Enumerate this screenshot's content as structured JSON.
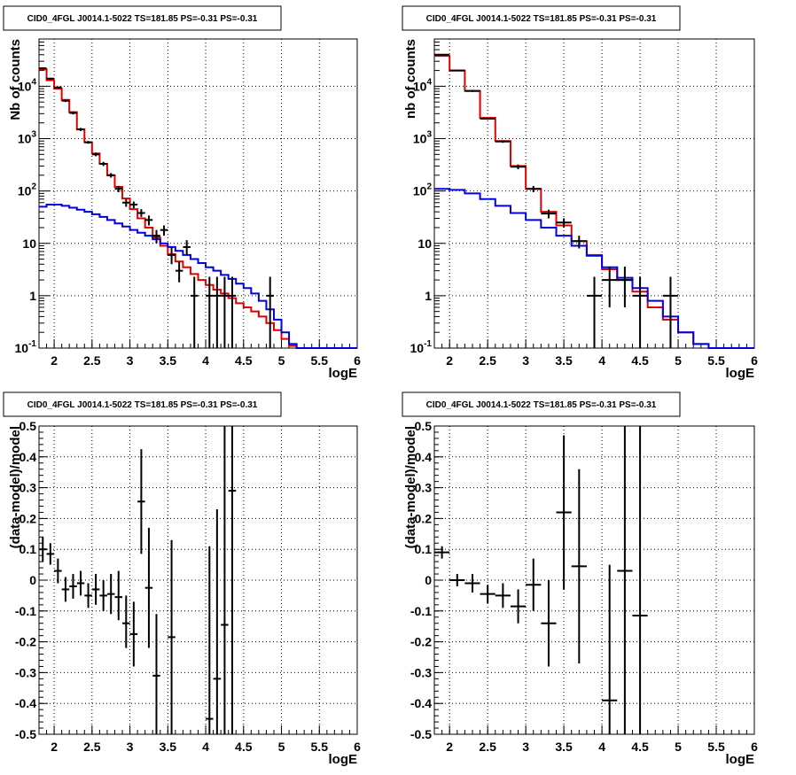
{
  "chart_data": [
    {
      "type": "line",
      "title": "CID0_4FGL J0014.1-5022 TS=181.85 PS=-0.31 PS=-0.31",
      "xlabel": "logE",
      "ylabel": "Nb of counts",
      "xlim": [
        1.8,
        6.0
      ],
      "ylim": [
        0.1,
        80000
      ],
      "yscale": "log",
      "grid": true,
      "x_ticks": [
        "2",
        "2.5",
        "3",
        "3.5",
        "4",
        "4.5",
        "5",
        "5.5",
        "6"
      ],
      "y_ticks": [
        "10^-1",
        "1",
        "10",
        "10^2",
        "10^3",
        "10^4"
      ],
      "bin_edges": [
        1.8,
        1.9,
        2.0,
        2.1,
        2.2,
        2.3,
        2.4,
        2.5,
        2.6,
        2.7,
        2.8,
        2.9,
        3.0,
        3.1,
        3.2,
        3.3,
        3.4,
        3.5,
        3.6,
        3.7,
        3.8,
        3.9,
        4.0,
        4.1,
        4.2,
        4.3,
        4.4,
        4.5,
        4.6,
        4.7,
        4.8,
        4.9,
        5.0,
        5.1,
        5.2,
        5.3,
        5.4,
        5.5,
        5.6,
        5.7,
        5.8,
        5.9,
        6.0
      ],
      "series": [
        {
          "color": "#e00000",
          "style": "step",
          "values": [
            21000,
            13000,
            9000,
            5500,
            3200,
            1500,
            850,
            520,
            330,
            200,
            120,
            72,
            45,
            30,
            20,
            13,
            9,
            6.2,
            4.5,
            3.5,
            2.6,
            2.0,
            1.6,
            1.3,
            1.1,
            0.9,
            0.72,
            0.6,
            0.5,
            0.4,
            0.3,
            0.22,
            0.15,
            0.11,
            0.1,
            0.1,
            0.1,
            0.1,
            0.1,
            0.1,
            0.1,
            0.1
          ]
        },
        {
          "color": "#0000e0",
          "style": "step",
          "values": [
            50,
            55,
            55,
            52,
            48,
            44,
            40,
            36,
            32,
            28,
            24,
            21,
            18,
            16,
            14,
            12,
            10,
            8.5,
            7.2,
            6,
            5,
            4.2,
            3.5,
            3,
            2.5,
            2.1,
            1.7,
            1.4,
            1.1,
            0.8,
            0.55,
            0.35,
            0.2,
            0.12,
            0.1,
            0.1,
            0.1,
            0.1,
            0.1,
            0.1,
            0.1,
            0.1
          ]
        },
        {
          "color": "#000000",
          "style": "errorbar",
          "points": [
            {
              "x": 1.85,
              "y": 22000,
              "lo": 21000,
              "hi": 23000
            },
            {
              "x": 1.95,
              "y": 14000,
              "lo": 13500,
              "hi": 14500
            },
            {
              "x": 2.05,
              "y": 9500,
              "lo": 9100,
              "hi": 9900
            },
            {
              "x": 2.15,
              "y": 5300,
              "lo": 5000,
              "hi": 5600
            },
            {
              "x": 2.25,
              "y": 3100,
              "lo": 2900,
              "hi": 3300
            },
            {
              "x": 2.35,
              "y": 1500,
              "lo": 1400,
              "hi": 1600
            },
            {
              "x": 2.45,
              "y": 850,
              "lo": 800,
              "hi": 900
            },
            {
              "x": 2.55,
              "y": 500,
              "lo": 460,
              "hi": 540
            },
            {
              "x": 2.65,
              "y": 330,
              "lo": 300,
              "hi": 360
            },
            {
              "x": 2.75,
              "y": 200,
              "lo": 180,
              "hi": 220
            },
            {
              "x": 2.85,
              "y": 110,
              "lo": 95,
              "hi": 125
            },
            {
              "x": 2.95,
              "y": 60,
              "lo": 50,
              "hi": 70
            },
            {
              "x": 3.05,
              "y": 55,
              "lo": 47,
              "hi": 63
            },
            {
              "x": 3.15,
              "y": 38,
              "lo": 32,
              "hi": 45
            },
            {
              "x": 3.25,
              "y": 28,
              "lo": 22,
              "hi": 34
            },
            {
              "x": 3.35,
              "y": 14,
              "lo": 10,
              "hi": 18
            },
            {
              "x": 3.45,
              "y": 18,
              "lo": 14,
              "hi": 22
            },
            {
              "x": 3.55,
              "y": 6,
              "lo": 4,
              "hi": 8.5
            },
            {
              "x": 3.65,
              "y": 3,
              "lo": 1.8,
              "hi": 4.5
            },
            {
              "x": 3.75,
              "y": 8.5,
              "lo": 6,
              "hi": 11.5
            },
            {
              "x": 3.85,
              "y": 1,
              "lo": 0.1,
              "hi": 2.3
            },
            {
              "x": 4.05,
              "y": 1,
              "lo": 0.1,
              "hi": 2.3
            },
            {
              "x": 4.15,
              "y": 1,
              "lo": 0.1,
              "hi": 2.3
            },
            {
              "x": 4.25,
              "y": 1,
              "lo": 0.1,
              "hi": 2.3
            },
            {
              "x": 4.35,
              "y": 1,
              "lo": 0.1,
              "hi": 2.3
            },
            {
              "x": 4.85,
              "y": 1,
              "lo": 0.1,
              "hi": 2.3
            }
          ]
        }
      ]
    },
    {
      "type": "line",
      "title": "CID0_4FGL J0014.1-5022 TS=181.85 PS=-0.31 PS=-0.31",
      "xlabel": "logE",
      "ylabel": "nb of counts",
      "xlim": [
        1.8,
        6.0
      ],
      "ylim": [
        0.1,
        80000
      ],
      "yscale": "log",
      "grid": true,
      "x_ticks": [
        "2",
        "2.5",
        "3",
        "3.5",
        "4",
        "4.5",
        "5",
        "5.5",
        "6"
      ],
      "y_ticks": [
        "10^-1",
        "1",
        "10",
        "10^2",
        "10^3",
        "10^4"
      ],
      "bin_edges": [
        1.8,
        2.0,
        2.2,
        2.4,
        2.6,
        2.8,
        3.0,
        3.2,
        3.4,
        3.6,
        3.8,
        4.0,
        4.2,
        4.4,
        4.6,
        4.8,
        5.0,
        5.2,
        5.4,
        5.6,
        5.8,
        6.0
      ],
      "series": [
        {
          "color": "#e00000",
          "style": "step",
          "values": [
            38000,
            20000,
            8200,
            2500,
            900,
            300,
            110,
            40,
            22,
            11,
            6,
            3.2,
            2.0,
            1.2,
            0.6,
            0.35,
            0.2,
            0.12,
            0.1,
            0.1,
            0.1
          ]
        },
        {
          "color": "#0000e0",
          "style": "step",
          "values": [
            110,
            105,
            90,
            70,
            52,
            38,
            28,
            20,
            14,
            9,
            5.8,
            3.5,
            2.2,
            1.4,
            0.8,
            0.4,
            0.2,
            0.12,
            0.1,
            0.1,
            0.1
          ]
        },
        {
          "color": "#000000",
          "style": "errorbar",
          "points": [
            {
              "x": 1.9,
              "y": 40000,
              "lo": 39000,
              "hi": 41000
            },
            {
              "x": 2.1,
              "y": 20000,
              "lo": 19500,
              "hi": 20500
            },
            {
              "x": 2.3,
              "y": 8100,
              "lo": 7800,
              "hi": 8400
            },
            {
              "x": 2.5,
              "y": 2400,
              "lo": 2300,
              "hi": 2500
            },
            {
              "x": 2.7,
              "y": 880,
              "lo": 830,
              "hi": 930
            },
            {
              "x": 2.9,
              "y": 290,
              "lo": 260,
              "hi": 320
            },
            {
              "x": 3.1,
              "y": 110,
              "lo": 95,
              "hi": 125
            },
            {
              "x": 3.3,
              "y": 37,
              "lo": 30,
              "hi": 44
            },
            {
              "x": 3.5,
              "y": 25,
              "lo": 20,
              "hi": 30
            },
            {
              "x": 3.7,
              "y": 11,
              "lo": 8,
              "hi": 14
            },
            {
              "x": 3.9,
              "y": 1,
              "lo": 0.1,
              "hi": 2.3
            },
            {
              "x": 4.1,
              "y": 2,
              "lo": 0.6,
              "hi": 3.6
            },
            {
              "x": 4.3,
              "y": 2,
              "lo": 0.6,
              "hi": 3.6
            },
            {
              "x": 4.5,
              "y": 1,
              "lo": 0.1,
              "hi": 2.3
            },
            {
              "x": 4.9,
              "y": 1,
              "lo": 0.1,
              "hi": 2.3
            }
          ]
        }
      ]
    },
    {
      "type": "scatter",
      "title": "CID0_4FGL J0014.1-5022 TS=181.85 PS=-0.31 PS=-0.31",
      "xlabel": "logE",
      "ylabel": "(data-model)/model",
      "xlim": [
        1.8,
        6.0
      ],
      "ylim": [
        -0.5,
        0.5
      ],
      "grid": true,
      "x_ticks": [
        "2",
        "2.5",
        "3",
        "3.5",
        "4",
        "4.5",
        "5",
        "5.5",
        "6"
      ],
      "y_ticks": [
        "-0.5",
        "-0.4",
        "-0.3",
        "-0.2",
        "-0.1",
        "0",
        "0.1",
        "0.2",
        "0.3",
        "0.4",
        "0.5"
      ],
      "series": [
        {
          "color": "#000000",
          "style": "errorbar",
          "xerr": 0.05,
          "points": [
            {
              "x": 1.85,
              "y": 0.1,
              "lo": 0.06,
              "hi": 0.14
            },
            {
              "x": 1.95,
              "y": 0.085,
              "lo": 0.05,
              "hi": 0.12
            },
            {
              "x": 2.05,
              "y": 0.03,
              "lo": -0.01,
              "hi": 0.07
            },
            {
              "x": 2.15,
              "y": -0.03,
              "lo": -0.07,
              "hi": 0.01
            },
            {
              "x": 2.25,
              "y": -0.02,
              "lo": -0.06,
              "hi": 0.02
            },
            {
              "x": 2.35,
              "y": -0.01,
              "lo": -0.05,
              "hi": 0.03
            },
            {
              "x": 2.45,
              "y": -0.05,
              "lo": -0.09,
              "hi": -0.01
            },
            {
              "x": 2.55,
              "y": -0.03,
              "lo": -0.08,
              "hi": 0.02
            },
            {
              "x": 2.65,
              "y": -0.05,
              "lo": -0.1,
              "hi": 0.0
            },
            {
              "x": 2.75,
              "y": -0.045,
              "lo": -0.11,
              "hi": 0.02
            },
            {
              "x": 2.85,
              "y": -0.055,
              "lo": -0.13,
              "hi": 0.03
            },
            {
              "x": 2.95,
              "y": -0.14,
              "lo": -0.22,
              "hi": -0.05
            },
            {
              "x": 3.05,
              "y": -0.175,
              "lo": -0.28,
              "hi": -0.07
            },
            {
              "x": 3.15,
              "y": 0.255,
              "lo": 0.085,
              "hi": 0.425
            },
            {
              "x": 3.25,
              "y": -0.025,
              "lo": -0.22,
              "hi": 0.17
            },
            {
              "x": 3.35,
              "y": -0.31,
              "lo": -0.5,
              "hi": -0.11
            },
            {
              "x": 3.55,
              "y": -0.185,
              "lo": -0.5,
              "hi": 0.13
            },
            {
              "x": 4.05,
              "y": -0.45,
              "lo": -0.5,
              "hi": 0.11
            },
            {
              "x": 4.15,
              "y": -0.32,
              "lo": -0.5,
              "hi": 0.23
            },
            {
              "x": 4.25,
              "y": -0.145,
              "lo": -0.5,
              "hi": 0.5
            },
            {
              "x": 4.35,
              "y": 0.29,
              "lo": -0.5,
              "hi": 0.5
            }
          ]
        }
      ]
    },
    {
      "type": "scatter",
      "title": "CID0_4FGL J0014.1-5022 TS=181.85 PS=-0.31 PS=-0.31",
      "xlabel": "logE",
      "ylabel": "(data-model)/model",
      "xlim": [
        1.8,
        6.0
      ],
      "ylim": [
        -0.5,
        0.5
      ],
      "grid": true,
      "x_ticks": [
        "2",
        "2.5",
        "3",
        "3.5",
        "4",
        "4.5",
        "5",
        "5.5",
        "6"
      ],
      "y_ticks": [
        "-0.5",
        "-0.4",
        "-0.3",
        "-0.2",
        "-0.1",
        "0",
        "0.1",
        "0.2",
        "0.3",
        "0.4",
        "0.5"
      ],
      "series": [
        {
          "color": "#000000",
          "style": "errorbar",
          "xerr": 0.1,
          "points": [
            {
              "x": 1.9,
              "y": 0.09,
              "lo": 0.07,
              "hi": 0.11
            },
            {
              "x": 2.1,
              "y": 0.0,
              "lo": -0.02,
              "hi": 0.02
            },
            {
              "x": 2.3,
              "y": -0.01,
              "lo": -0.04,
              "hi": 0.02
            },
            {
              "x": 2.5,
              "y": -0.045,
              "lo": -0.075,
              "hi": -0.015
            },
            {
              "x": 2.7,
              "y": -0.05,
              "lo": -0.09,
              "hi": -0.01
            },
            {
              "x": 2.9,
              "y": -0.085,
              "lo": -0.14,
              "hi": -0.03
            },
            {
              "x": 3.1,
              "y": -0.015,
              "lo": -0.1,
              "hi": 0.07
            },
            {
              "x": 3.3,
              "y": -0.14,
              "lo": -0.28,
              "hi": 0.0
            },
            {
              "x": 3.5,
              "y": 0.22,
              "lo": -0.03,
              "hi": 0.47
            },
            {
              "x": 3.7,
              "y": 0.045,
              "lo": -0.27,
              "hi": 0.36
            },
            {
              "x": 4.1,
              "y": -0.39,
              "lo": -0.5,
              "hi": 0.05
            },
            {
              "x": 4.3,
              "y": 0.03,
              "lo": -0.5,
              "hi": 0.5
            },
            {
              "x": 4.5,
              "y": -0.115,
              "lo": -0.5,
              "hi": 0.5
            }
          ]
        }
      ]
    }
  ]
}
